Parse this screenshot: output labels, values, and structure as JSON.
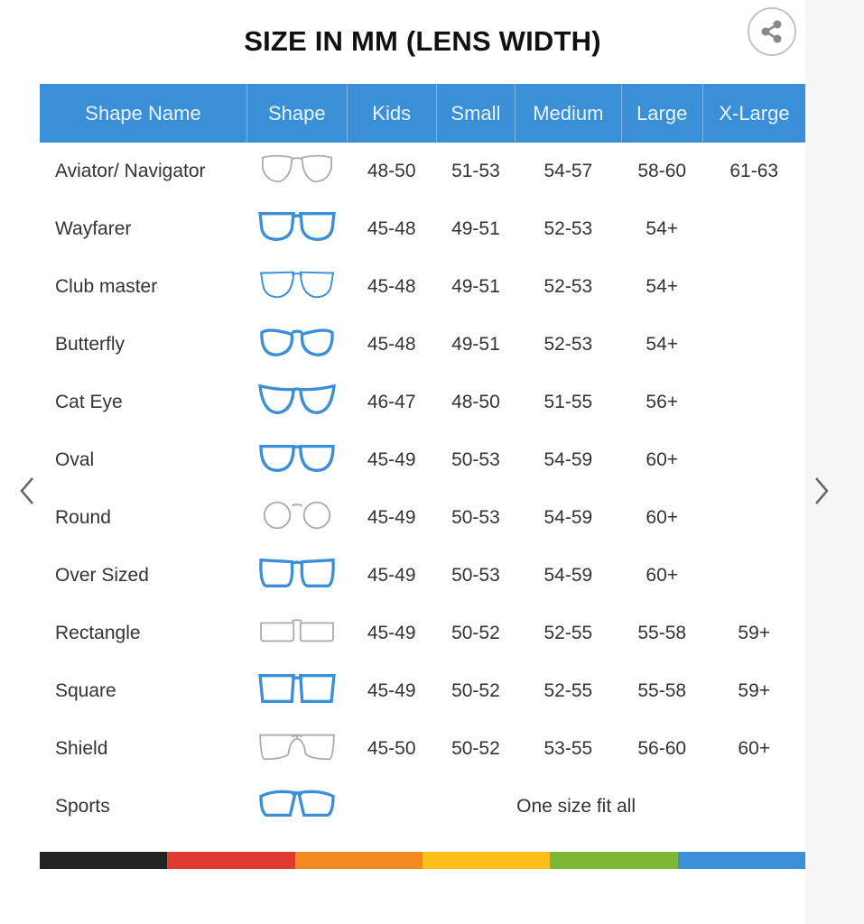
{
  "title": "SIZE IN MM (LENS WIDTH)",
  "share_icon": "share-icon",
  "table": {
    "headers": [
      "Shape Name",
      "Shape",
      "Kids",
      "Small",
      "Medium",
      "Large",
      "X-Large"
    ],
    "rows": [
      {
        "name": "Aviator/ Navigator",
        "icon": "aviator",
        "color": "gray",
        "kids": "48-50",
        "small": "51-53",
        "medium": "54-57",
        "large": "58-60",
        "xlarge": "61-63"
      },
      {
        "name": "Wayfarer",
        "icon": "wayfarer",
        "color": "blue",
        "kids": "45-48",
        "small": "49-51",
        "medium": "52-53",
        "large": "54+",
        "xlarge": ""
      },
      {
        "name": "Club master",
        "icon": "clubmaster",
        "color": "mixed",
        "kids": "45-48",
        "small": "49-51",
        "medium": "52-53",
        "large": "54+",
        "xlarge": ""
      },
      {
        "name": "Butterfly",
        "icon": "butterfly",
        "color": "blue",
        "kids": "45-48",
        "small": "49-51",
        "medium": "52-53",
        "large": "54+",
        "xlarge": ""
      },
      {
        "name": "Cat Eye",
        "icon": "cateye",
        "color": "blue",
        "kids": "46-47",
        "small": "48-50",
        "medium": "51-55",
        "large": "56+",
        "xlarge": ""
      },
      {
        "name": "Oval",
        "icon": "oval",
        "color": "blue",
        "kids": "45-49",
        "small": "50-53",
        "medium": "54-59",
        "large": "60+",
        "xlarge": ""
      },
      {
        "name": "Round",
        "icon": "round",
        "color": "gray",
        "kids": "45-49",
        "small": "50-53",
        "medium": "54-59",
        "large": "60+",
        "xlarge": ""
      },
      {
        "name": "Over Sized",
        "icon": "oversized",
        "color": "blue",
        "kids": "45-49",
        "small": "50-53",
        "medium": "54-59",
        "large": "60+",
        "xlarge": ""
      },
      {
        "name": "Rectangle",
        "icon": "rectangle",
        "color": "gray",
        "kids": "45-49",
        "small": "50-52",
        "medium": "52-55",
        "large": "55-58",
        "xlarge": "59+"
      },
      {
        "name": "Square",
        "icon": "square",
        "color": "blue",
        "kids": "45-49",
        "small": "50-52",
        "medium": "52-55",
        "large": "55-58",
        "xlarge": "59+"
      },
      {
        "name": "Shield",
        "icon": "shield",
        "color": "gray",
        "kids": "45-50",
        "small": "50-52",
        "medium": "53-55",
        "large": "56-60",
        "xlarge": "60+"
      },
      {
        "name": "Sports",
        "icon": "sports",
        "color": "blue",
        "span_text": "One size fit all"
      }
    ]
  },
  "colors": {
    "header": "#3a8fd6",
    "blue_frame": "#3a8fd6",
    "gray_frame": "#a9b0b5"
  },
  "color_bar": [
    "#222222",
    "#e03a2f",
    "#f28a1e",
    "#fbbf1a",
    "#7cb836",
    "#3a8fd6"
  ],
  "nav": {
    "prev_icon": "chevron-left-icon",
    "next_icon": "chevron-right-icon"
  }
}
